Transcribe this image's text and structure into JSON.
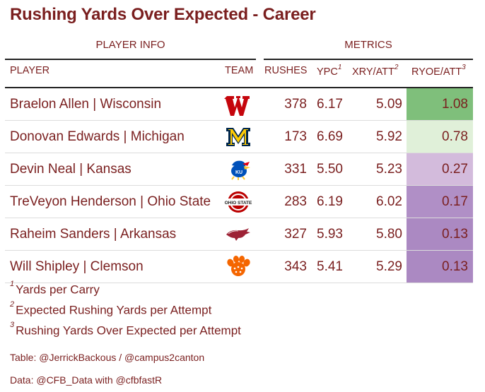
{
  "title": "Rushing Yards Over Expected - Career",
  "groups": {
    "player_info": "PLAYER INFO",
    "metrics": "METRICS"
  },
  "columns": {
    "player": "PLAYER",
    "team": "TEAM",
    "rushes": "RUSHES",
    "ypc": "YPC",
    "ypc_note": "1",
    "xry": "XRY/ATT",
    "xry_note": "2",
    "ryoe": "RYOE/ATT",
    "ryoe_note": "3"
  },
  "colors": {
    "text": "#7a1f1f",
    "ryoe_fills": [
      "#7fbf7b",
      "#e0f0d9",
      "#d3bbdc",
      "#b08fc6",
      "#ab89c2",
      "#ab89c2"
    ]
  },
  "chart_data": {
    "type": "table",
    "columns": [
      "PLAYER",
      "TEAM",
      "RUSHES",
      "YPC",
      "XRY/ATT",
      "RYOE/ATT"
    ],
    "rows": [
      {
        "player": "Braelon Allen | Wisconsin",
        "team_logo": "wisconsin-logo",
        "rushes": "378",
        "ypc": "6.17",
        "xry": "5.09",
        "ryoe": "1.08"
      },
      {
        "player": "Donovan Edwards | Michigan",
        "team_logo": "michigan-logo",
        "rushes": "173",
        "ypc": "6.69",
        "xry": "5.92",
        "ryoe": "0.78"
      },
      {
        "player": "Devin Neal | Kansas",
        "team_logo": "kansas-logo",
        "rushes": "331",
        "ypc": "5.50",
        "xry": "5.23",
        "ryoe": "0.27"
      },
      {
        "player": "TreVeyon Henderson | Ohio State",
        "team_logo": "ohio-state-logo",
        "rushes": "283",
        "ypc": "6.19",
        "xry": "6.02",
        "ryoe": "0.17"
      },
      {
        "player": "Raheim Sanders | Arkansas",
        "team_logo": "arkansas-logo",
        "rushes": "327",
        "ypc": "5.93",
        "xry": "5.80",
        "ryoe": "0.13"
      },
      {
        "player": "Will Shipley | Clemson",
        "team_logo": "clemson-logo",
        "rushes": "343",
        "ypc": "5.41",
        "xry": "5.29",
        "ryoe": "0.13"
      }
    ]
  },
  "footnotes": [
    {
      "mark": "1",
      "text": "Yards per Carry"
    },
    {
      "mark": "2",
      "text": "Expected Rushing Yards per Attempt"
    },
    {
      "mark": "3",
      "text": "Rushing Yards Over Expected per Attempt"
    }
  ],
  "sources": {
    "table": "Table: @JerrickBackous / @campus2canton",
    "data": "Data: @CFB_Data with @cfbfastR"
  },
  "ohio_logo_text": "OHIO STATE"
}
